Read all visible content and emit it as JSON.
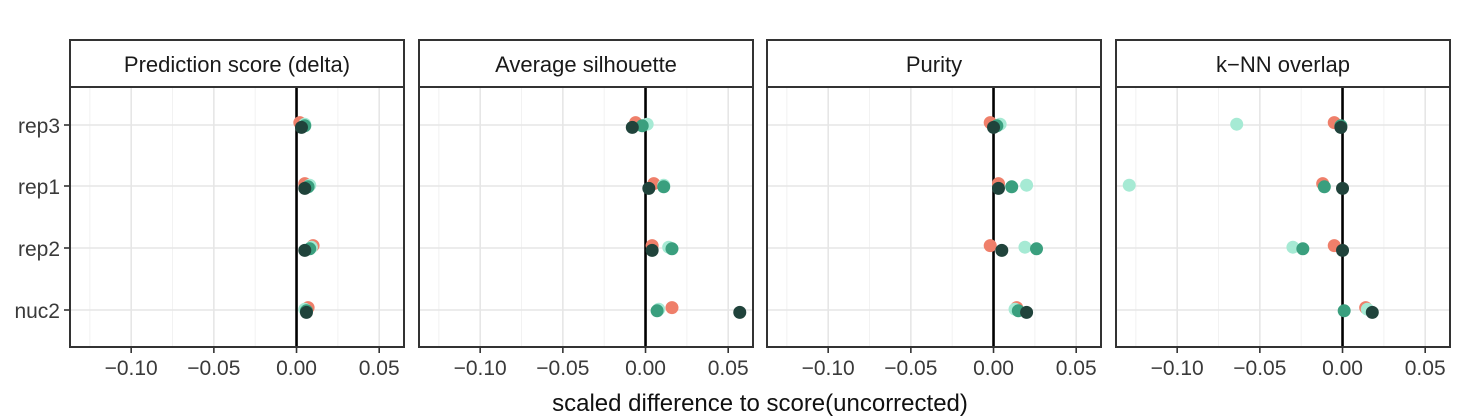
{
  "chart_data": {
    "type": "scatter",
    "xlabel": "scaled difference to score(uncorrected)",
    "xlim": [
      -0.137,
      0.065
    ],
    "x_ticks": [
      -0.1,
      -0.05,
      0.0,
      0.05
    ],
    "x_tick_labels": [
      "−0.10",
      "−0.05",
      "0.00",
      "0.05"
    ],
    "categories": [
      "rep3",
      "rep1",
      "rep2",
      "nuc2"
    ],
    "grid": true,
    "reference_line_x": 0,
    "series_colors": [
      "#ef7f6a",
      "#a6ead4",
      "#3a9f7e",
      "#20433b"
    ],
    "panels": [
      {
        "title": "Prediction score (delta)",
        "series": [
          {
            "values": [
              0.002,
              0.005,
              0.01,
              0.007
            ]
          },
          {
            "values": [
              0.005,
              0.008,
              0.009,
              0.005
            ]
          },
          {
            "values": [
              0.005,
              0.007,
              0.008,
              0.006
            ]
          },
          {
            "values": [
              0.003,
              0.005,
              0.005,
              0.006
            ]
          }
        ]
      },
      {
        "title": "Average silhouette",
        "series": [
          {
            "values": [
              -0.006,
              0.005,
              0.004,
              0.016
            ]
          },
          {
            "values": [
              0.001,
              0.011,
              0.014,
              0.008
            ]
          },
          {
            "values": [
              -0.002,
              0.011,
              0.016,
              0.007
            ]
          },
          {
            "values": [
              -0.008,
              0.002,
              0.004,
              0.057
            ]
          }
        ]
      },
      {
        "title": "Purity",
        "series": [
          {
            "values": [
              -0.002,
              0.003,
              -0.002,
              0.014
            ]
          },
          {
            "values": [
              0.004,
              0.02,
              0.019,
              0.013
            ]
          },
          {
            "values": [
              0.002,
              0.011,
              0.026,
              0.015
            ]
          },
          {
            "values": [
              0.0,
              0.003,
              0.005,
              0.02
            ]
          }
        ]
      },
      {
        "title": "k−NN overlap",
        "series": [
          {
            "values": [
              -0.005,
              -0.012,
              -0.005,
              0.014
            ]
          },
          {
            "values": [
              -0.064,
              -0.129,
              -0.03,
              0.015
            ]
          },
          {
            "values": [
              -0.001,
              -0.011,
              -0.024,
              0.001
            ]
          },
          {
            "values": [
              -0.001,
              0.0,
              0.0,
              0.018
            ]
          }
        ]
      }
    ]
  }
}
